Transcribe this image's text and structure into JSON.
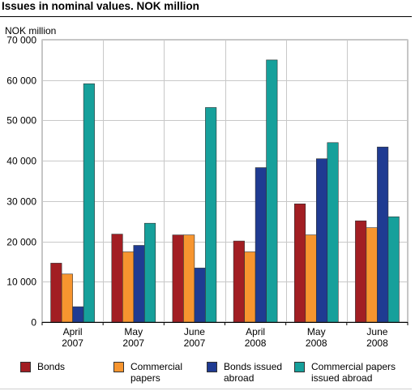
{
  "title": "Issues in nominal values. NOK million",
  "colors": {
    "bonds": "#a21e23",
    "commercial_papers": "#f7952f",
    "bonds_abroad": "#1f3b92",
    "commercial_abroad": "#16a09b"
  },
  "chart_data": {
    "type": "bar",
    "title": "Issues in nominal values. NOK million",
    "ylabel": "NOK million",
    "xlabel": "",
    "ylim": [
      0,
      70000
    ],
    "yticks": [
      0,
      10000,
      20000,
      30000,
      40000,
      50000,
      60000,
      70000
    ],
    "ytick_labels": [
      "0",
      "10 000",
      "20 000",
      "30 000",
      "40 000",
      "50 000",
      "60 000",
      "70 000"
    ],
    "grid": true,
    "legend_position": "bottom",
    "categories": [
      [
        "April",
        "2007"
      ],
      [
        "May",
        "2007"
      ],
      [
        "June",
        "2007"
      ],
      [
        "April",
        "2008"
      ],
      [
        "May",
        "2008"
      ],
      [
        "June",
        "2008"
      ]
    ],
    "series": [
      {
        "name": "Bonds",
        "color": "#a21e23",
        "values": [
          14600,
          21800,
          21600,
          20100,
          29300,
          25100
        ]
      },
      {
        "name": "Commercial papers",
        "color": "#f7952f",
        "values": [
          11900,
          17400,
          21600,
          17400,
          21600,
          23400
        ]
      },
      {
        "name": "Bonds issued abroad",
        "color": "#1f3b92",
        "values": [
          3800,
          19000,
          13400,
          38300,
          40500,
          43400
        ]
      },
      {
        "name": "Commercial papers issued abroad",
        "color": "#16a09b",
        "values": [
          59100,
          24500,
          53200,
          65000,
          44500,
          26100
        ]
      }
    ]
  },
  "legend": [
    {
      "label": "Bonds",
      "color": "#a21e23"
    },
    {
      "label": "Commercial\npapers",
      "color": "#f7952f"
    },
    {
      "label": "Bonds issued\nabroad",
      "color": "#1f3b92"
    },
    {
      "label": "Commercial papers\nissued abroad",
      "color": "#16a09b"
    }
  ]
}
